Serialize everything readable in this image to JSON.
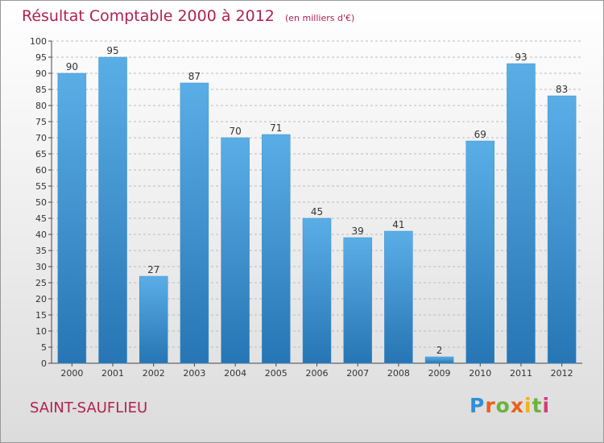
{
  "header": {
    "title": "Résultat Comptable 2000 à 2012",
    "subtitle": "(en milliers d'€)"
  },
  "footer": {
    "commune": "SAINT-SAUFLIEU",
    "logo_text": "Proxiti"
  },
  "colors": {
    "title": "#b0224f",
    "bar_light": "#5aaee6",
    "bar_dark": "#2775b4"
  },
  "chart_data": {
    "type": "bar",
    "title": "Résultat Comptable 2000 à 2012",
    "subtitle": "(en milliers d'€)",
    "xlabel": "",
    "ylabel": "",
    "categories": [
      "2000",
      "2001",
      "2002",
      "2003",
      "2004",
      "2005",
      "2006",
      "2007",
      "2008",
      "2009",
      "2010",
      "2011",
      "2012"
    ],
    "values": [
      90,
      95,
      27,
      87,
      70,
      71,
      45,
      39,
      41,
      2,
      69,
      93,
      83
    ],
    "ylim": [
      0,
      100
    ],
    "ytick_step": 5,
    "grid": true,
    "legend": "none"
  }
}
